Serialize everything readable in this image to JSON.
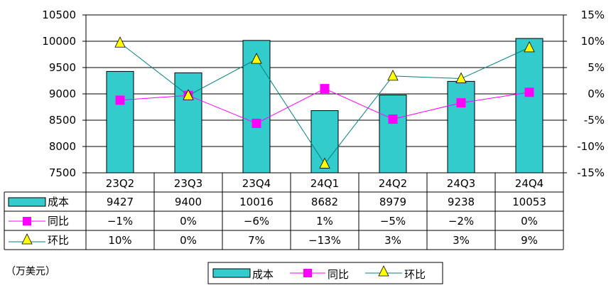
{
  "chart_data": {
    "type": "bar",
    "categories": [
      "23Q2",
      "23Q3",
      "23Q4",
      "24Q1",
      "24Q2",
      "24Q3",
      "24Q4"
    ],
    "y_left": {
      "range": [
        7500,
        10500
      ],
      "ticks": [
        7500,
        8000,
        8500,
        9000,
        9500,
        10000,
        10500
      ]
    },
    "y_right": {
      "range": [
        -15,
        15
      ],
      "ticks": [
        "-15%",
        "-10%",
        "-5%",
        "0%",
        "5%",
        "10%",
        "15%"
      ]
    },
    "grid": "horizontal",
    "series": [
      {
        "name": "成本",
        "kind": "bar",
        "axis": "left",
        "color": "#33CCCC",
        "values": [
          9427,
          9400,
          10016,
          8682,
          8979,
          9238,
          10053
        ],
        "labels": [
          "9427",
          "9400",
          "10016",
          "8682",
          "8979",
          "9238",
          "10053"
        ]
      },
      {
        "name": "同比",
        "kind": "line",
        "axis": "right",
        "color": "#FF00FF",
        "marker": "square",
        "values": [
          -1.2,
          -0.3,
          -5.6,
          1.0,
          -4.8,
          -1.7,
          0.3
        ],
        "labels": [
          "−1%",
          "0%",
          "−6%",
          "1%",
          "−5%",
          "−2%",
          "0%"
        ]
      },
      {
        "name": "环比",
        "kind": "line",
        "axis": "right",
        "color": "#008080",
        "marker": "triangle",
        "marker_color": "#FFFF00",
        "values": [
          9.7,
          -0.3,
          6.6,
          -13.3,
          3.4,
          2.9,
          8.8
        ],
        "labels": [
          "10%",
          "0%",
          "7%",
          "−13%",
          "3%",
          "3%",
          "9%"
        ]
      }
    ],
    "unit_label": "（万美元）",
    "legend": {
      "placement": "bottom-center",
      "items": [
        "成本",
        "同比",
        "环比"
      ]
    }
  }
}
